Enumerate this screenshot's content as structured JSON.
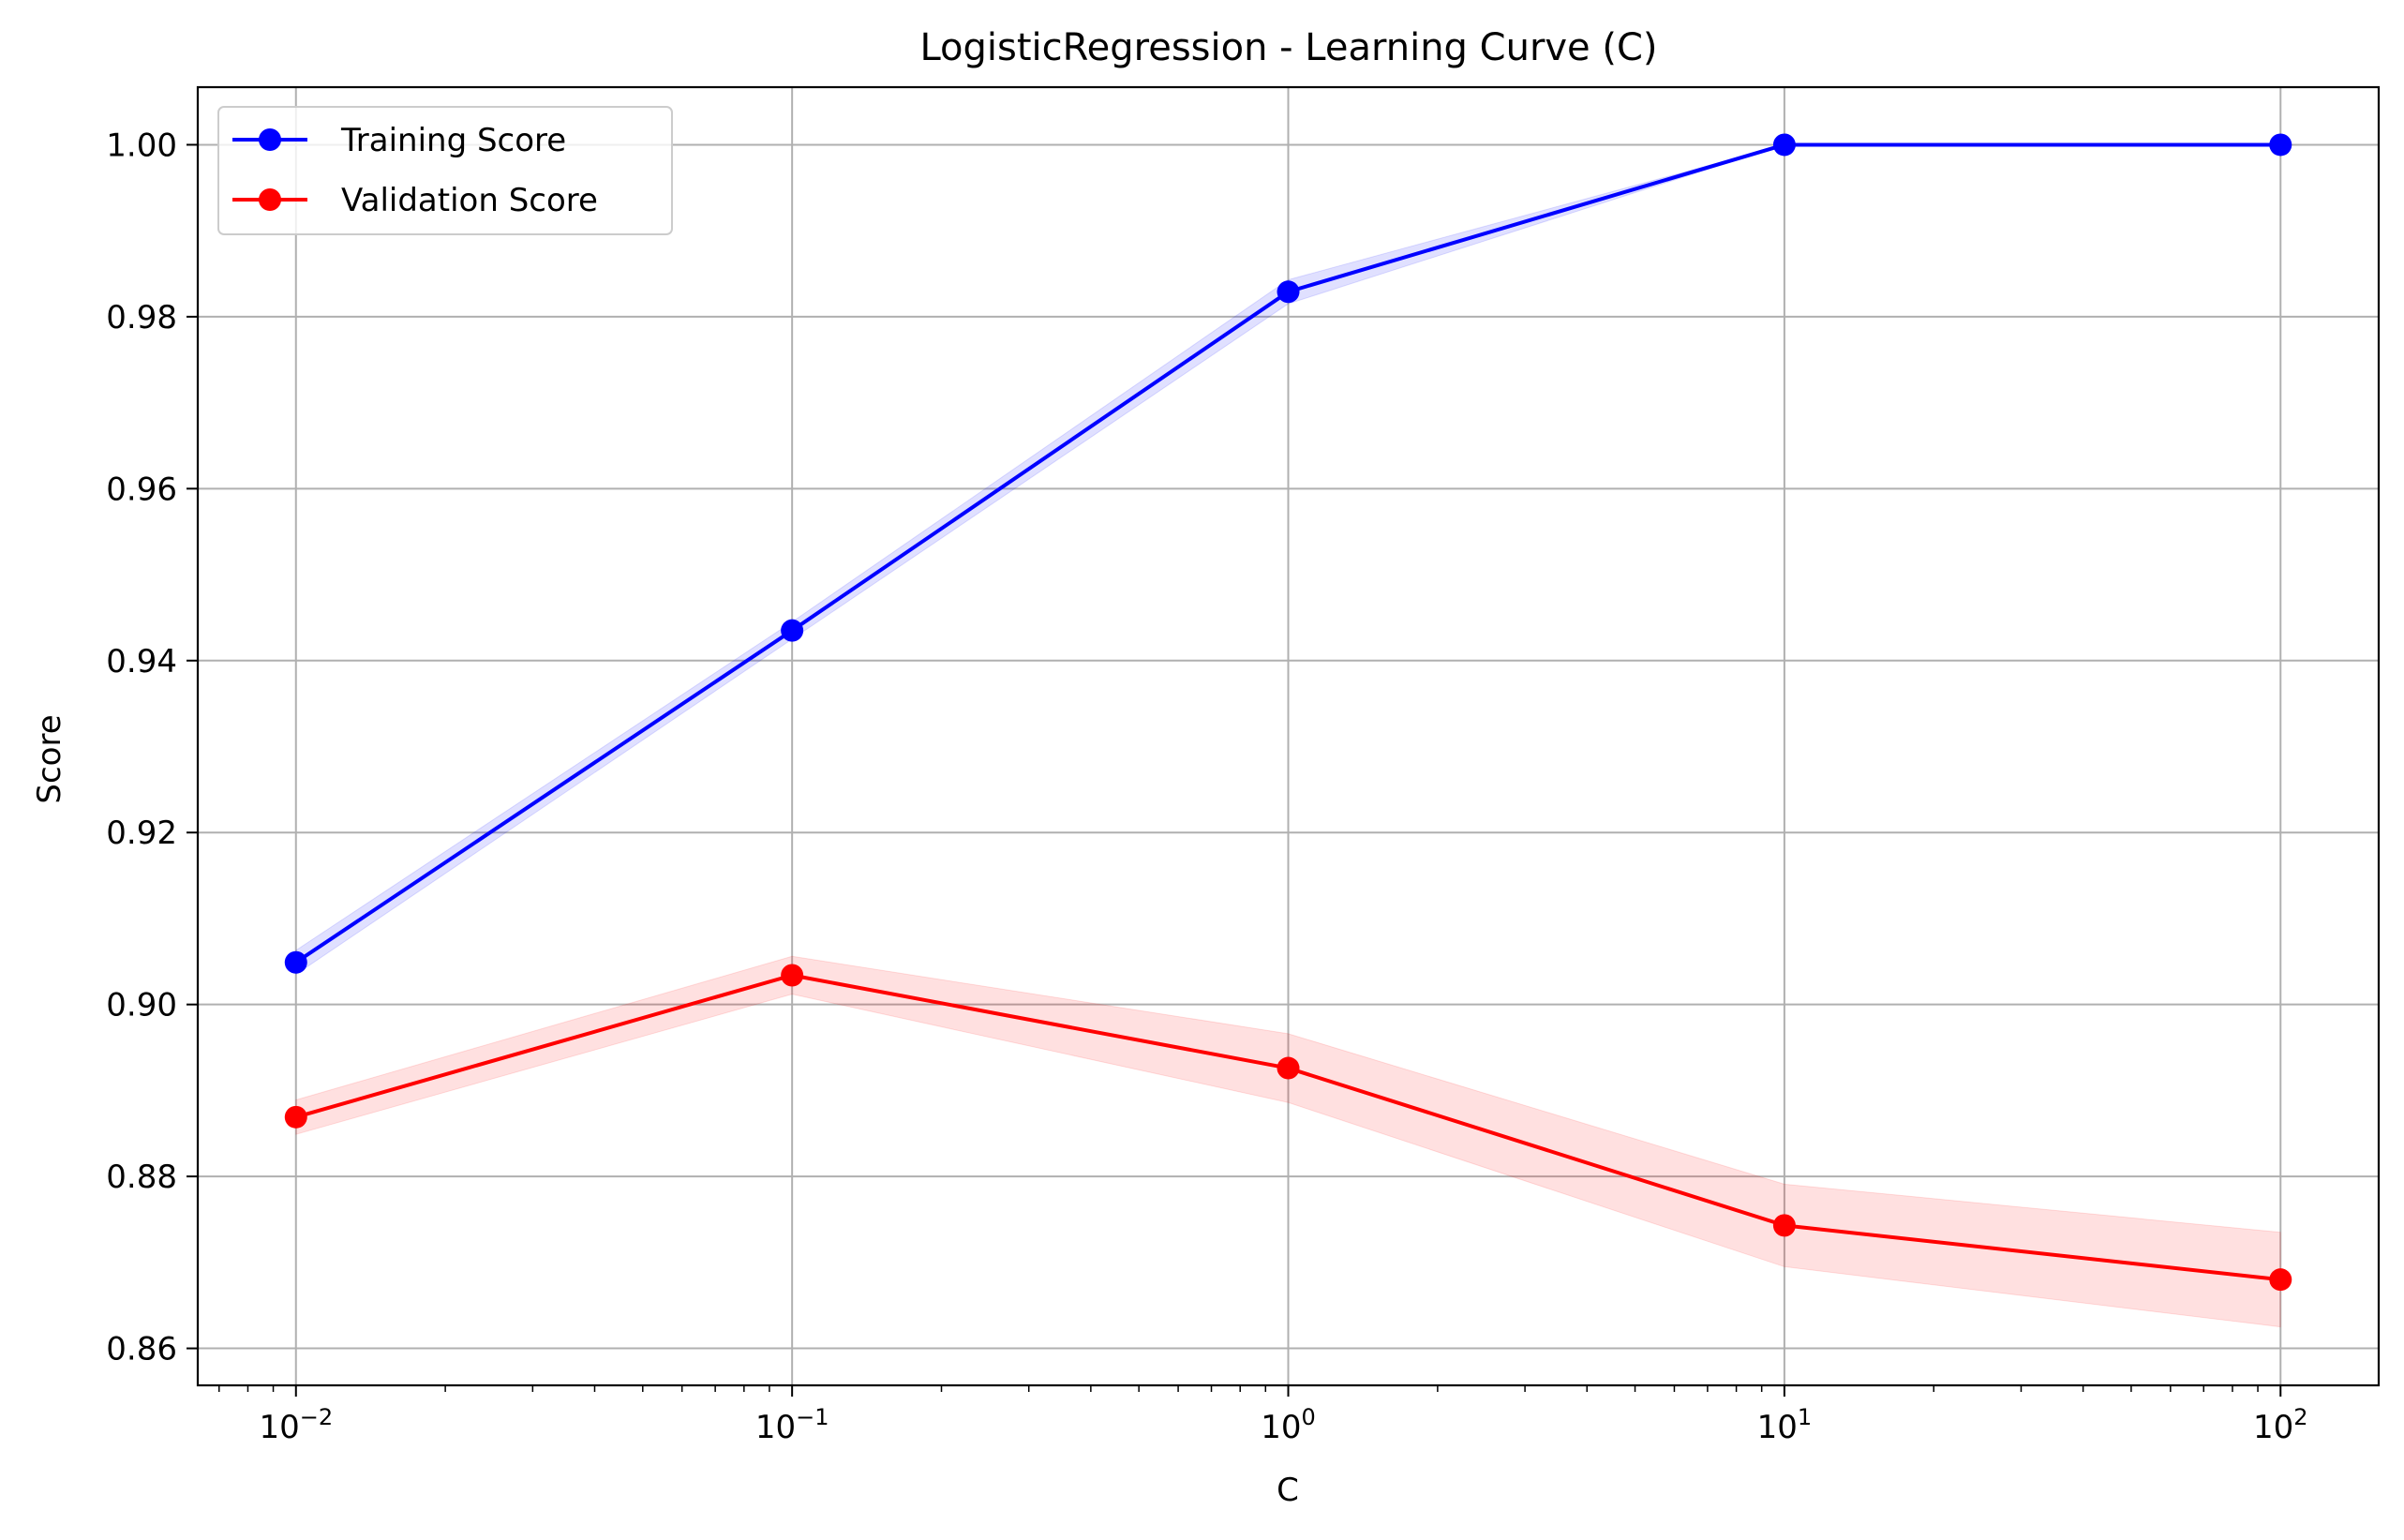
{
  "chart_data": {
    "type": "line",
    "title": "LogisticRegression - Learning Curve (C)",
    "xlabel": "C",
    "ylabel": "Score",
    "xscale": "log",
    "x": [
      0.01,
      0.1,
      1,
      10,
      100
    ],
    "x_tick_labels": [
      {
        "value": 0.01,
        "base": "10",
        "exp": "−2"
      },
      {
        "value": 0.1,
        "base": "10",
        "exp": "−1"
      },
      {
        "value": 1,
        "base": "10",
        "exp": "0"
      },
      {
        "value": 10,
        "base": "10",
        "exp": "1"
      },
      {
        "value": 100,
        "base": "10",
        "exp": "2"
      }
    ],
    "xlim": [
      0.00634,
      157.7
    ],
    "ylim": [
      0.8557,
      1.0067
    ],
    "y_ticks": [
      0.86,
      0.88,
      0.9,
      0.92,
      0.94,
      0.96,
      0.98,
      1.0
    ],
    "y_tick_labels": [
      "0.86",
      "0.88",
      "0.90",
      "0.92",
      "0.94",
      "0.96",
      "0.98",
      "1.00"
    ],
    "grid": true,
    "legend_position": "top-left",
    "series": [
      {
        "name": "Training Score",
        "color": "#0000ff",
        "marker": "circle",
        "values": [
          0.9049,
          0.9435,
          0.9829,
          1.0,
          1.0
        ],
        "band_lower": [
          0.9035,
          0.9425,
          0.9815,
          1.0,
          1.0
        ],
        "band_upper": [
          0.9063,
          0.9445,
          0.9843,
          1.0,
          1.0
        ],
        "band_color": "#0000ff"
      },
      {
        "name": "Validation Score",
        "color": "#ff0000",
        "marker": "circle",
        "values": [
          0.8869,
          0.9034,
          0.8926,
          0.8743,
          0.868
        ],
        "band_lower": [
          0.8849,
          0.9012,
          0.8886,
          0.8695,
          0.8625
        ],
        "band_upper": [
          0.8889,
          0.9056,
          0.8966,
          0.8791,
          0.8735
        ],
        "band_color": "#ff0000"
      }
    ]
  }
}
